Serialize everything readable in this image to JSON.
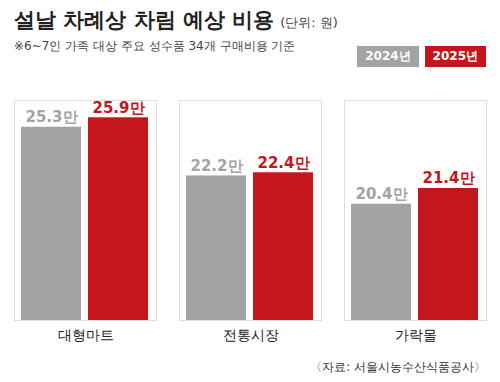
{
  "chart_data": {
    "type": "bar",
    "title": "설날 차례상 차림 예상 비용",
    "subtitle": "(단위: 원)",
    "annotations": [
      "※6~7인 가족 대상 주요 성수품 34개 구매비용 기준"
    ],
    "source": "〈자료: 서울시농수산식품공사〉",
    "categories": [
      "대형마트",
      "전통시장",
      "가락몰"
    ],
    "series": [
      {
        "name": "2024년",
        "color": "#a3a3a3",
        "values": [
          25.3,
          22.2,
          20.4
        ],
        "value_labels": [
          "25.3만",
          "22.2만",
          "20.4만"
        ]
      },
      {
        "name": "2025년",
        "color": "#c4161c",
        "values": [
          25.9,
          22.4,
          21.4
        ],
        "value_labels": [
          "25.9만",
          "22.4만",
          "21.4만"
        ]
      }
    ],
    "ylim": [
      13,
      27
    ],
    "yticks": [],
    "tick_labels": "x",
    "grid": false,
    "legend": "top-right",
    "data_labels": true
  }
}
